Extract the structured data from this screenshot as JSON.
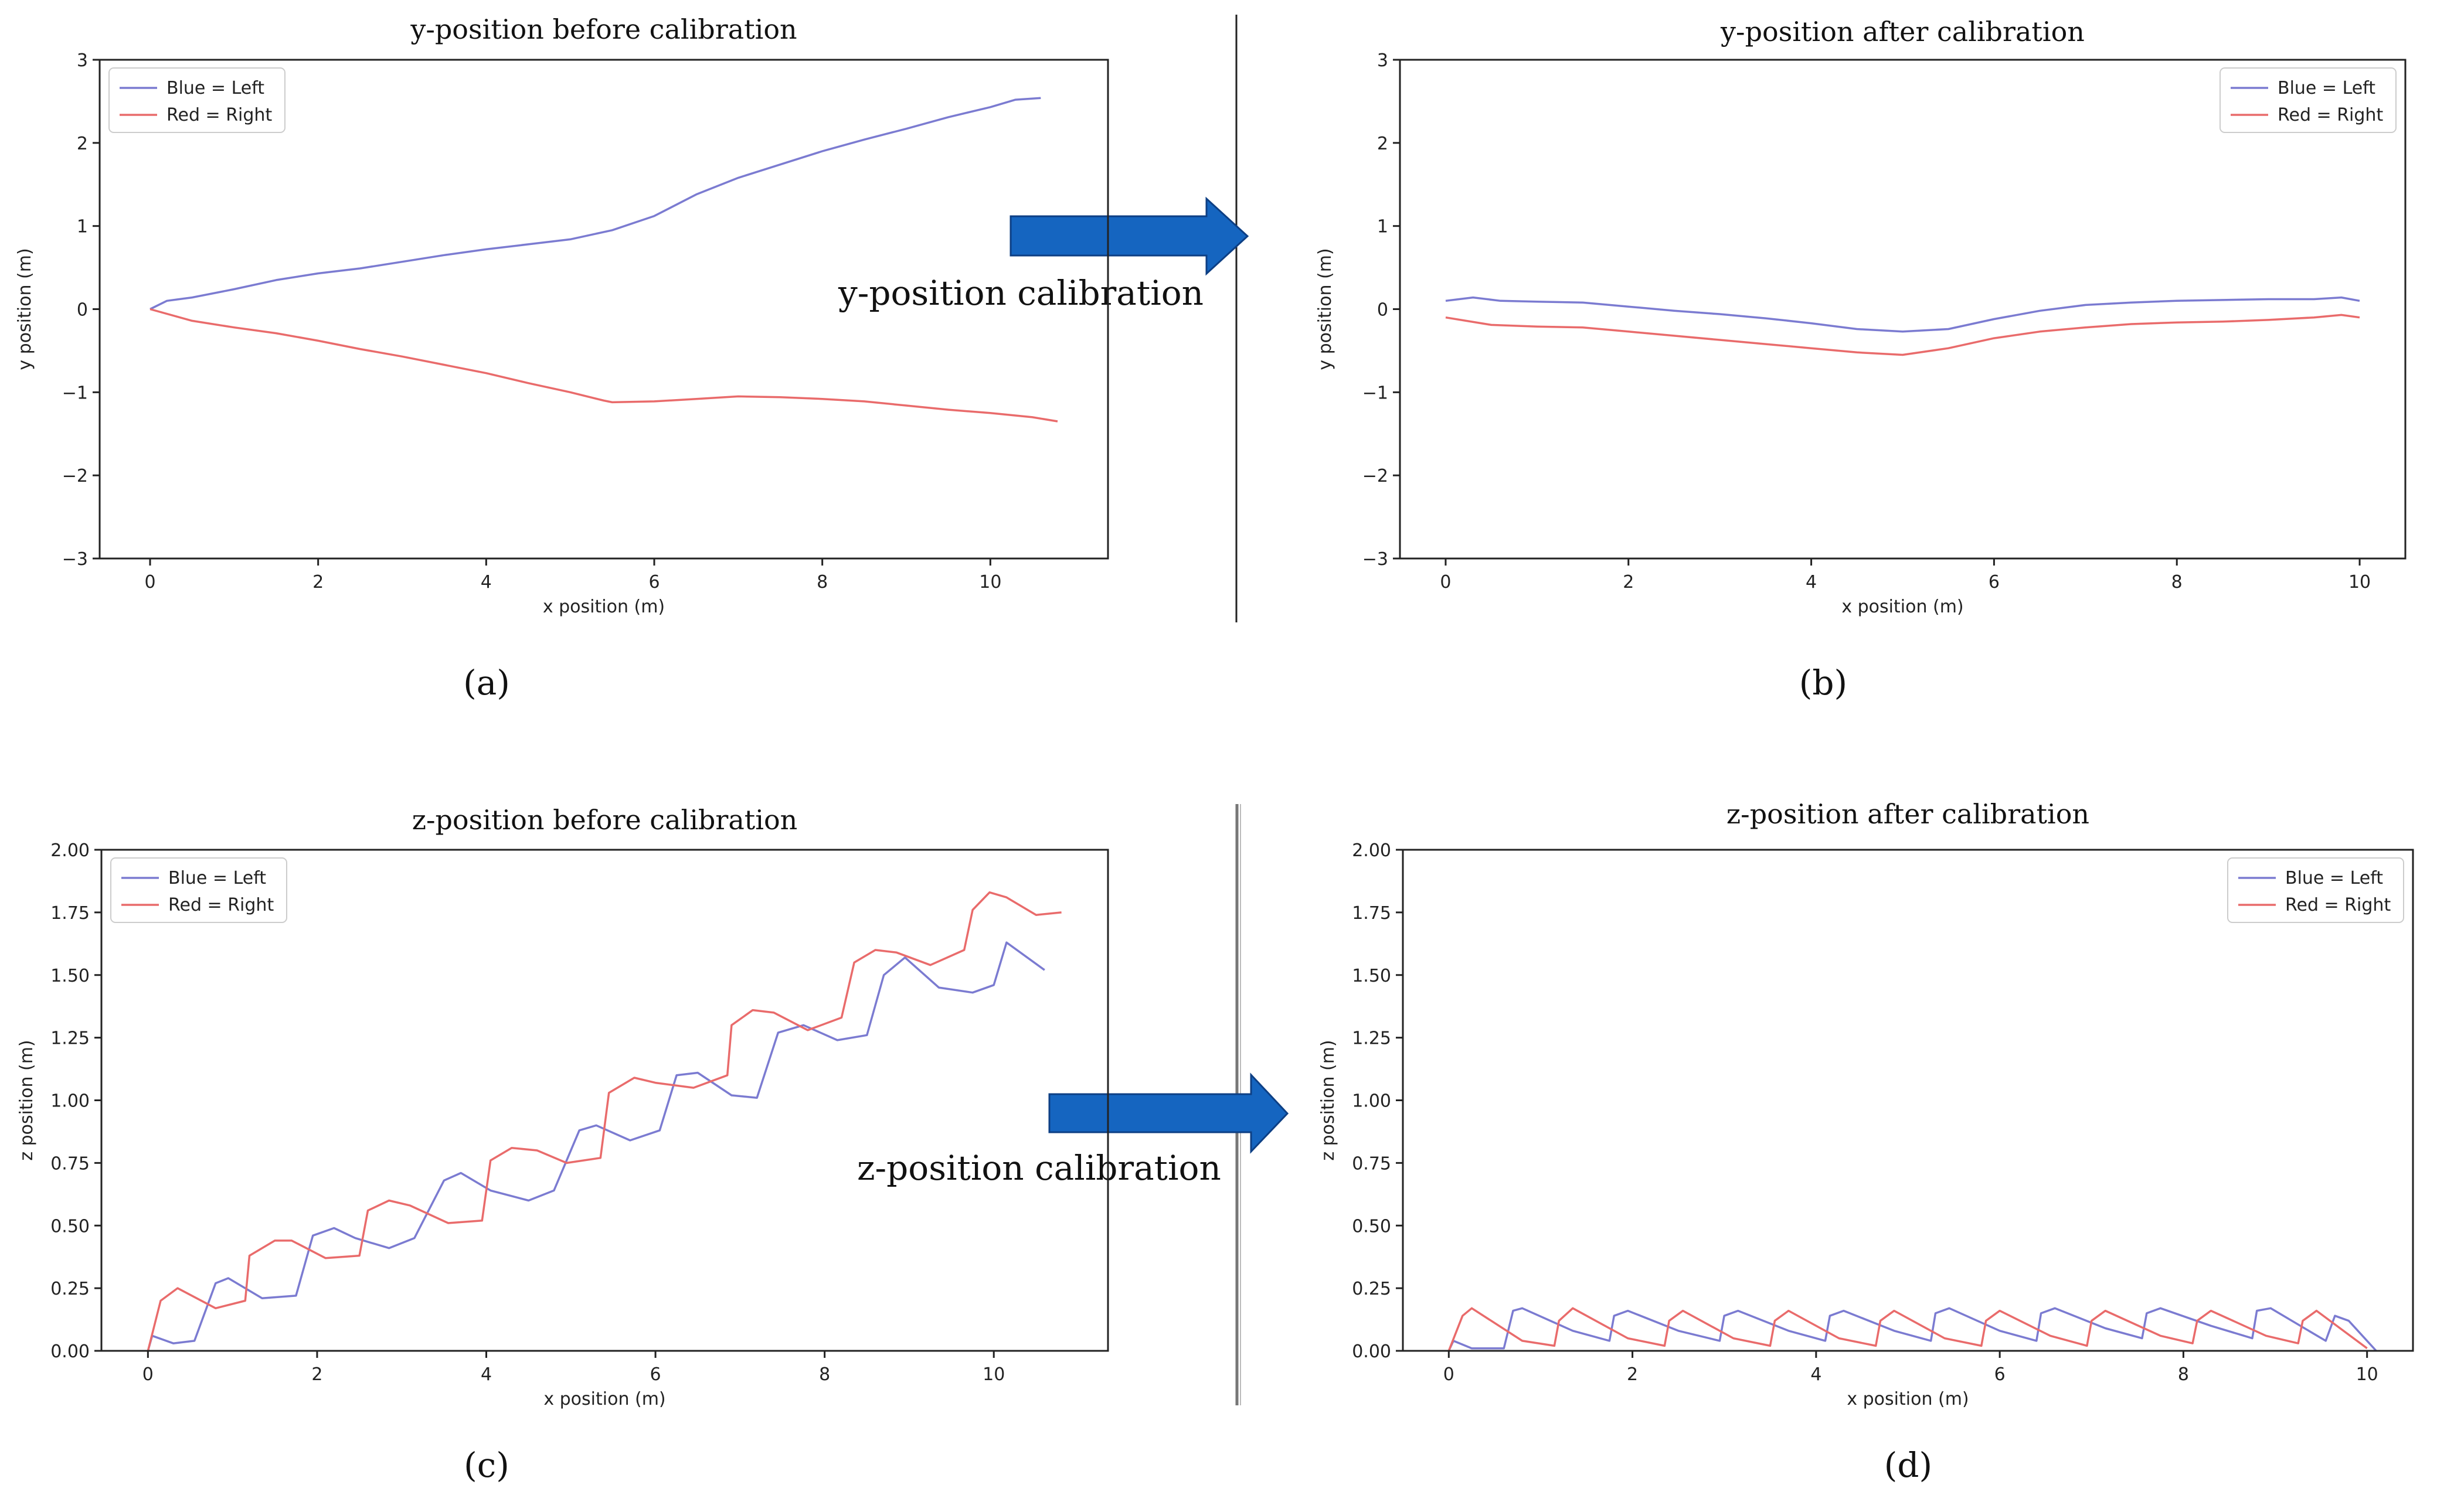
{
  "figure": {
    "arrow_color": "#1565c0",
    "line_color_left": "#7b7bd1",
    "line_color_right": "#e96b6b",
    "calibration_labels": {
      "y": "y-position calibration",
      "z": "z-position calibration"
    }
  },
  "chart_data": [
    {
      "id": "a",
      "type": "line",
      "title": "y-position before calibration",
      "panel_label": "(a)",
      "xlabel": "x position (m)",
      "ylabel": "y position (m)",
      "xlim": [
        -0.6,
        11.4
      ],
      "ylim": [
        -3,
        3
      ],
      "xticks": [
        0,
        2,
        4,
        6,
        8,
        10
      ],
      "yticks": [
        -3,
        -2,
        -1,
        0,
        1,
        2,
        3
      ],
      "ytick_labels": [
        "−3",
        "−2",
        "−1",
        "0",
        "1",
        "2",
        "3"
      ],
      "legend": "top-left",
      "series": [
        {
          "name": "Blue = Left",
          "x": [
            0,
            0.2,
            0.5,
            1.0,
            1.5,
            2.0,
            2.5,
            3.0,
            3.5,
            4.0,
            4.5,
            5.0,
            5.5,
            6.0,
            6.5,
            7.0,
            7.5,
            8.0,
            8.5,
            9.0,
            9.5,
            10.0,
            10.3,
            10.6
          ],
          "y": [
            0,
            0.1,
            0.14,
            0.24,
            0.35,
            0.43,
            0.49,
            0.57,
            0.65,
            0.72,
            0.78,
            0.84,
            0.95,
            1.12,
            1.38,
            1.58,
            1.74,
            1.9,
            2.04,
            2.17,
            2.31,
            2.43,
            2.52,
            2.54
          ]
        },
        {
          "name": "Red = Right",
          "x": [
            0,
            0.5,
            1.0,
            1.5,
            2.0,
            2.5,
            3.0,
            3.5,
            4.0,
            4.5,
            5.0,
            5.4,
            5.5,
            6.0,
            6.5,
            7.0,
            7.5,
            8.0,
            8.5,
            9.0,
            9.5,
            10.0,
            10.5,
            10.8
          ],
          "y": [
            0,
            -0.14,
            -0.22,
            -0.29,
            -0.38,
            -0.48,
            -0.57,
            -0.67,
            -0.77,
            -0.89,
            -1.0,
            -1.1,
            -1.12,
            -1.11,
            -1.08,
            -1.05,
            -1.06,
            -1.08,
            -1.11,
            -1.16,
            -1.21,
            -1.25,
            -1.3,
            -1.35
          ]
        }
      ]
    },
    {
      "id": "b",
      "type": "line",
      "title": "y-position after calibration",
      "panel_label": "(b)",
      "xlabel": "x position (m)",
      "ylabel": "y position (m)",
      "xlim": [
        -0.5,
        10.5
      ],
      "ylim": [
        -3,
        3
      ],
      "xticks": [
        0,
        2,
        4,
        6,
        8,
        10
      ],
      "yticks": [
        -3,
        -2,
        -1,
        0,
        1,
        2,
        3
      ],
      "ytick_labels": [
        "−3",
        "−2",
        "−1",
        "0",
        "1",
        "2",
        "3"
      ],
      "legend": "top-right",
      "series": [
        {
          "name": "Blue = Left",
          "x": [
            0,
            0.3,
            0.6,
            1.0,
            1.5,
            2.0,
            2.5,
            3.0,
            3.5,
            4.0,
            4.5,
            5.0,
            5.5,
            6.0,
            6.5,
            7.0,
            7.5,
            8.0,
            8.5,
            9.0,
            9.5,
            9.8,
            10.0
          ],
          "y": [
            0.1,
            0.14,
            0.1,
            0.09,
            0.08,
            0.03,
            -0.02,
            -0.06,
            -0.11,
            -0.17,
            -0.24,
            -0.27,
            -0.24,
            -0.12,
            -0.02,
            0.05,
            0.08,
            0.1,
            0.11,
            0.12,
            0.12,
            0.14,
            0.1
          ]
        },
        {
          "name": "Red = Right",
          "x": [
            0,
            0.5,
            1.0,
            1.5,
            2.0,
            2.5,
            3.0,
            3.5,
            4.0,
            4.5,
            5.0,
            5.5,
            6.0,
            6.5,
            7.0,
            7.5,
            8.0,
            8.5,
            9.0,
            9.5,
            9.8,
            10.0
          ],
          "y": [
            -0.1,
            -0.19,
            -0.21,
            -0.22,
            -0.27,
            -0.32,
            -0.37,
            -0.42,
            -0.47,
            -0.52,
            -0.55,
            -0.47,
            -0.35,
            -0.27,
            -0.22,
            -0.18,
            -0.16,
            -0.15,
            -0.13,
            -0.1,
            -0.07,
            -0.1
          ]
        }
      ]
    },
    {
      "id": "c",
      "type": "line",
      "title": "z-position before calibration",
      "panel_label": "(c)",
      "xlabel": "x position (m)",
      "ylabel": "z position (m)",
      "xlim": [
        -0.55,
        11.35
      ],
      "ylim": [
        0,
        2
      ],
      "xticks": [
        0,
        2,
        4,
        6,
        8,
        10
      ],
      "yticks": [
        0,
        0.25,
        0.5,
        0.75,
        1.0,
        1.25,
        1.5,
        1.75,
        2.0
      ],
      "ytick_labels": [
        "0.00",
        "0.25",
        "0.50",
        "0.75",
        "1.00",
        "1.25",
        "1.50",
        "1.75",
        "2.00"
      ],
      "legend": "top-left",
      "series": [
        {
          "name": "Blue = Left",
          "x": [
            0,
            0.05,
            0.3,
            0.55,
            0.8,
            0.95,
            1.35,
            1.75,
            1.95,
            2.2,
            2.45,
            2.85,
            3.15,
            3.5,
            3.7,
            4.05,
            4.5,
            4.8,
            5.1,
            5.3,
            5.7,
            6.05,
            6.25,
            6.5,
            6.9,
            7.2,
            7.45,
            7.75,
            8.15,
            8.5,
            8.7,
            8.95,
            9.35,
            9.75,
            10.0,
            10.15,
            10.6
          ],
          "y": [
            0,
            0.06,
            0.03,
            0.04,
            0.27,
            0.29,
            0.21,
            0.22,
            0.46,
            0.49,
            0.45,
            0.41,
            0.45,
            0.68,
            0.71,
            0.64,
            0.6,
            0.64,
            0.88,
            0.9,
            0.84,
            0.88,
            1.1,
            1.11,
            1.02,
            1.01,
            1.27,
            1.3,
            1.24,
            1.26,
            1.5,
            1.57,
            1.45,
            1.43,
            1.46,
            1.63,
            1.52
          ]
        },
        {
          "name": "Red = Right",
          "x": [
            0,
            0.15,
            0.35,
            0.8,
            1.15,
            1.2,
            1.5,
            1.7,
            2.1,
            2.5,
            2.6,
            2.85,
            3.1,
            3.55,
            3.95,
            4.05,
            4.3,
            4.6,
            4.95,
            5.35,
            5.45,
            5.75,
            6.0,
            6.45,
            6.85,
            6.9,
            7.15,
            7.4,
            7.8,
            8.2,
            8.35,
            8.6,
            8.85,
            9.25,
            9.65,
            9.75,
            9.95,
            10.15,
            10.5,
            10.8
          ],
          "y": [
            0,
            0.2,
            0.25,
            0.17,
            0.2,
            0.38,
            0.44,
            0.44,
            0.37,
            0.38,
            0.56,
            0.6,
            0.58,
            0.51,
            0.52,
            0.76,
            0.81,
            0.8,
            0.75,
            0.77,
            1.03,
            1.09,
            1.07,
            1.05,
            1.1,
            1.3,
            1.36,
            1.35,
            1.28,
            1.33,
            1.55,
            1.6,
            1.59,
            1.54,
            1.6,
            1.76,
            1.83,
            1.81,
            1.74,
            1.75
          ]
        }
      ]
    },
    {
      "id": "d",
      "type": "line",
      "title": "z-position after calibration",
      "panel_label": "(d)",
      "xlabel": "x position (m)",
      "ylabel": "z position (m)",
      "xlim": [
        -0.5,
        10.5
      ],
      "ylim": [
        0,
        2
      ],
      "xticks": [
        0,
        2,
        4,
        6,
        8,
        10
      ],
      "yticks": [
        0,
        0.25,
        0.5,
        0.75,
        1.0,
        1.25,
        1.5,
        1.75,
        2.0
      ],
      "ytick_labels": [
        "0.00",
        "0.25",
        "0.50",
        "0.75",
        "1.00",
        "1.25",
        "1.50",
        "1.75",
        "2.00"
      ],
      "legend": "top-right",
      "series": [
        {
          "name": "Blue = Left",
          "x": [
            0,
            0.05,
            0.25,
            0.6,
            0.7,
            0.8,
            1.35,
            1.75,
            1.8,
            1.95,
            2.5,
            2.95,
            3.0,
            3.15,
            3.7,
            4.1,
            4.15,
            4.3,
            4.85,
            5.25,
            5.3,
            5.45,
            6.0,
            6.4,
            6.45,
            6.6,
            7.15,
            7.55,
            7.6,
            7.75,
            8.3,
            8.75,
            8.8,
            8.95,
            9.55,
            9.65,
            9.8,
            10.1
          ],
          "y": [
            0,
            0.04,
            0.01,
            0.01,
            0.16,
            0.17,
            0.08,
            0.04,
            0.14,
            0.16,
            0.08,
            0.04,
            0.14,
            0.16,
            0.08,
            0.04,
            0.14,
            0.16,
            0.08,
            0.04,
            0.15,
            0.17,
            0.08,
            0.04,
            0.15,
            0.17,
            0.09,
            0.05,
            0.15,
            0.17,
            0.1,
            0.05,
            0.16,
            0.17,
            0.04,
            0.14,
            0.12,
            0
          ]
        },
        {
          "name": "Red = Right",
          "x": [
            0,
            0.15,
            0.25,
            0.8,
            1.15,
            1.2,
            1.35,
            1.95,
            2.35,
            2.4,
            2.55,
            3.1,
            3.5,
            3.55,
            3.7,
            4.25,
            4.65,
            4.7,
            4.85,
            5.4,
            5.8,
            5.85,
            6.0,
            6.55,
            6.95,
            7.0,
            7.15,
            7.75,
            8.1,
            8.15,
            8.3,
            8.9,
            9.25,
            9.3,
            9.45,
            10.0
          ],
          "y": [
            0,
            0.14,
            0.17,
            0.04,
            0.02,
            0.12,
            0.17,
            0.05,
            0.02,
            0.12,
            0.16,
            0.05,
            0.02,
            0.12,
            0.16,
            0.05,
            0.02,
            0.12,
            0.16,
            0.05,
            0.02,
            0.12,
            0.16,
            0.06,
            0.02,
            0.12,
            0.16,
            0.06,
            0.03,
            0.12,
            0.16,
            0.06,
            0.03,
            0.12,
            0.16,
            0.01
          ]
        }
      ]
    }
  ]
}
